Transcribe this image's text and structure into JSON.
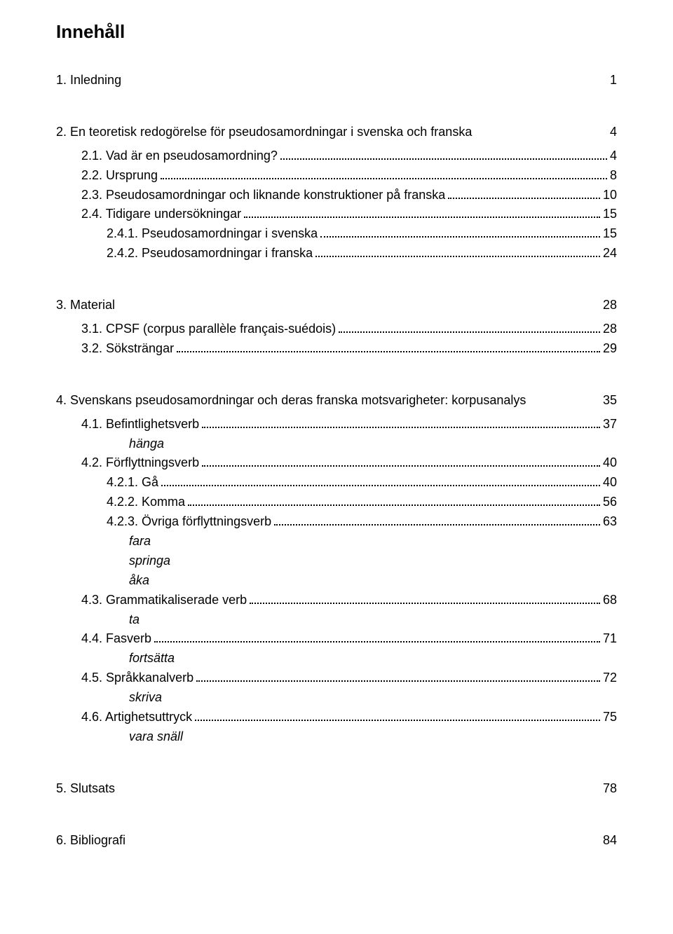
{
  "title": "Innehåll",
  "entries": [
    {
      "type": "plain",
      "indent": 0,
      "label": "1. Inledning",
      "page": "1",
      "gap_after": "lg"
    },
    {
      "type": "plain",
      "indent": 0,
      "label": "2. En teoretisk redogörelse för pseudosamordningar i svenska och franska",
      "page": "4",
      "gap_after": "sm"
    },
    {
      "type": "dotted",
      "indent": 1,
      "label": "2.1. Vad är en pseudosamordning?",
      "page": "4"
    },
    {
      "type": "dotted",
      "indent": 1,
      "label": "2.2. Ursprung",
      "page": "8"
    },
    {
      "type": "dotted",
      "indent": 1,
      "label": "2.3. Pseudosamordningar och liknande konstruktioner på franska",
      "page": "10"
    },
    {
      "type": "dotted",
      "indent": 1,
      "label": "2.4. Tidigare undersökningar",
      "page": "15"
    },
    {
      "type": "dotted",
      "indent": 2,
      "label": "2.4.1. Pseudosamordningar i svenska",
      "page": "15"
    },
    {
      "type": "dotted",
      "indent": 2,
      "label": "2.4.2. Pseudosamordningar i franska",
      "page": "24",
      "gap_after": "lg"
    },
    {
      "type": "plain",
      "indent": 0,
      "label": "3. Material",
      "page": "28",
      "gap_after": "sm"
    },
    {
      "type": "dotted",
      "indent": 1,
      "label": "3.1. CPSF (corpus parallèle français-suédois)",
      "page": "28"
    },
    {
      "type": "dotted",
      "indent": 1,
      "label": "3.2. Söksträngar",
      "page": "29",
      "gap_after": "lg"
    },
    {
      "type": "plain",
      "indent": 0,
      "label": "4. Svenskans pseudosamordningar och deras franska motsvarigheter: korpusanalys",
      "page": "35",
      "gap_after": "sm"
    },
    {
      "type": "dotted",
      "indent": 1,
      "label": "4.1. Befintlighetsverb",
      "page": "37"
    },
    {
      "type": "sub",
      "indent": 3,
      "label": "hänga",
      "italic": true
    },
    {
      "type": "dotted",
      "indent": 1,
      "label": "4.2. Förflyttningsverb",
      "page": "40"
    },
    {
      "type": "dotted",
      "indent": 2,
      "label": "4.2.1. Gå",
      "page": "40"
    },
    {
      "type": "dotted",
      "indent": 2,
      "label": "4.2.2. Komma",
      "page": "56"
    },
    {
      "type": "dotted",
      "indent": 2,
      "label": "4.2.3. Övriga förflyttningsverb",
      "page": "63"
    },
    {
      "type": "sub",
      "indent": 3,
      "label": "fara",
      "italic": true
    },
    {
      "type": "sub",
      "indent": 3,
      "label": "springa",
      "italic": true
    },
    {
      "type": "sub",
      "indent": 3,
      "label": "åka",
      "italic": true
    },
    {
      "type": "dotted",
      "indent": 1,
      "label": "4.3. Grammatikaliserade verb",
      "page": "68"
    },
    {
      "type": "sub",
      "indent": 3,
      "label": "ta",
      "italic": true
    },
    {
      "type": "dotted",
      "indent": 1,
      "label": "4.4. Fasverb",
      "page": "71"
    },
    {
      "type": "sub",
      "indent": 3,
      "label": "fortsätta",
      "italic": true
    },
    {
      "type": "dotted",
      "indent": 1,
      "label": "4.5. Språkkanalverb",
      "page": "72"
    },
    {
      "type": "sub",
      "indent": 3,
      "label": "skriva",
      "italic": true
    },
    {
      "type": "dotted",
      "indent": 1,
      "label": "4.6. Artighetsuttryck",
      "page": "75"
    },
    {
      "type": "sub",
      "indent": 3,
      "label": "vara snäll",
      "italic": true,
      "gap_after": "lg"
    },
    {
      "type": "plain",
      "indent": 0,
      "label": "5. Slutsats",
      "page": "78",
      "gap_after": "lg"
    },
    {
      "type": "plain",
      "indent": 0,
      "label": "6. Bibliografi",
      "page": "84"
    }
  ]
}
